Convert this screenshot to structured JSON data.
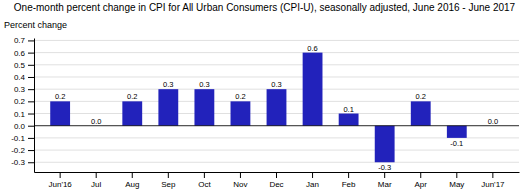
{
  "chart_data": {
    "type": "bar",
    "title": "One-month percent change in CPI for All Urban Consumers (CPI-U), seasonally adjusted, June 2016 - June 2017",
    "ylabel": "Percent change",
    "categories": [
      "Jun'16",
      "Jul",
      "Aug",
      "Sep",
      "Oct",
      "Nov",
      "Dec",
      "Jan",
      "Feb",
      "Mar",
      "Apr",
      "May",
      "Jun'17"
    ],
    "values": [
      0.2,
      0.0,
      0.2,
      0.3,
      0.3,
      0.2,
      0.3,
      0.6,
      0.1,
      -0.3,
      0.2,
      -0.1,
      0.0
    ],
    "value_labels": [
      "0.2",
      "0.0",
      "0.2",
      "0.3",
      "0.3",
      "0.2",
      "0.3",
      "0.6",
      "0.1",
      "-0.3",
      "0.2",
      "-0.1",
      "0.0"
    ],
    "data_labels": true,
    "color": "#2222bb",
    "ylim": [
      -0.38,
      0.72
    ],
    "yticks": [
      -0.3,
      -0.2,
      -0.1,
      {
        "value": 0,
        "label": "0.0"
      },
      0.1,
      0.2,
      0.3,
      0.4,
      0.5,
      0.6,
      0.7
    ],
    "grid": true
  }
}
